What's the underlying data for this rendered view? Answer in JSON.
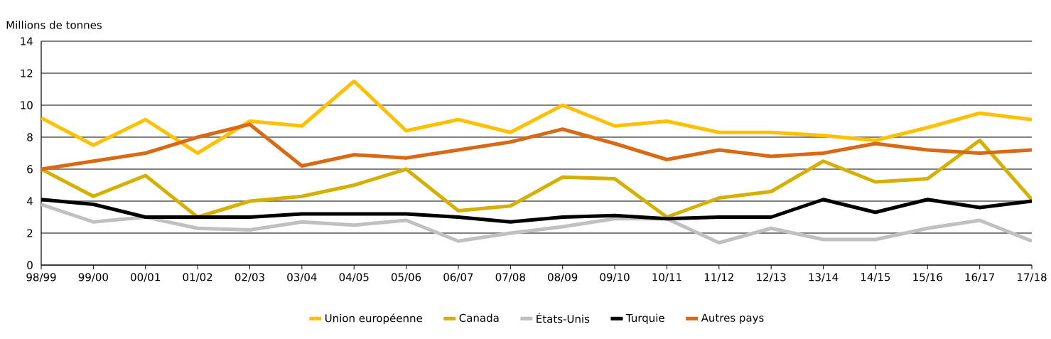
{
  "chart_data": {
    "type": "line",
    "ylabel": "Millions de tonnes",
    "categories": [
      "98/99",
      "99/00",
      "00/01",
      "01/02",
      "02/03",
      "03/04",
      "04/05",
      "05/06",
      "06/07",
      "07/08",
      "08/09",
      "09/10",
      "10/11",
      "11/12",
      "12/13",
      "13/14",
      "14/15",
      "15/16",
      "16/17",
      "17/18"
    ],
    "series": [
      {
        "name": "Union européenne",
        "color": "#ffc000",
        "values": [
          9.2,
          7.5,
          9.1,
          7.0,
          9.0,
          8.7,
          11.5,
          8.4,
          9.1,
          8.3,
          10.0,
          8.7,
          9.0,
          8.3,
          8.3,
          8.1,
          7.8,
          8.6,
          9.5,
          9.1
        ]
      },
      {
        "name": "Canada",
        "color": "#d6b000",
        "values": [
          6.0,
          4.3,
          5.6,
          3.0,
          4.0,
          4.3,
          5.0,
          6.0,
          3.4,
          3.7,
          5.5,
          5.4,
          3.0,
          4.2,
          4.6,
          6.5,
          5.2,
          5.4,
          7.8,
          4.1
        ]
      },
      {
        "name": "États-Unis",
        "color": "#c0c0c0",
        "values": [
          3.8,
          2.7,
          3.0,
          2.3,
          2.2,
          2.7,
          2.5,
          2.8,
          1.5,
          2.0,
          2.4,
          2.9,
          2.9,
          1.4,
          2.3,
          1.6,
          1.6,
          2.3,
          2.8,
          1.5
        ]
      },
      {
        "name": "Turquie",
        "color": "#000000",
        "values": [
          4.1,
          3.8,
          3.0,
          3.0,
          3.0,
          3.2,
          3.2,
          3.2,
          3.0,
          2.7,
          3.0,
          3.1,
          2.9,
          3.0,
          3.0,
          4.1,
          3.3,
          4.1,
          3.6,
          4.0
        ]
      },
      {
        "name": "Autres pays",
        "color": "#d86a16",
        "values": [
          6.0,
          6.5,
          7.0,
          8.0,
          8.8,
          6.2,
          6.9,
          6.7,
          7.2,
          7.7,
          8.5,
          7.6,
          6.6,
          7.2,
          6.8,
          7.0,
          7.6,
          7.2,
          7.0,
          7.2
        ]
      }
    ],
    "ylim": [
      0,
      14
    ],
    "yticks": [
      0,
      2,
      4,
      6,
      8,
      10,
      12,
      14
    ],
    "grid": "y",
    "legend": "bottom",
    "marker": "none",
    "line_style": "solid"
  }
}
